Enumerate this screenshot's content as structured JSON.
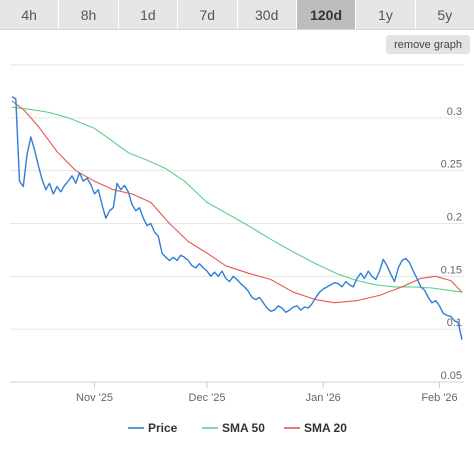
{
  "tabs": [
    {
      "label": "4h",
      "active": false
    },
    {
      "label": "8h",
      "active": false
    },
    {
      "label": "1d",
      "active": false
    },
    {
      "label": "7d",
      "active": false
    },
    {
      "label": "30d",
      "active": false
    },
    {
      "label": "120d",
      "active": true
    },
    {
      "label": "1y",
      "active": false
    },
    {
      "label": "5y",
      "active": false
    }
  ],
  "remove_graph_label": "remove graph",
  "colors": {
    "price": "#2f7ed8",
    "sma50": "#5bd18b",
    "sma20": "#e8574a"
  },
  "chart_data": {
    "type": "line",
    "title": "",
    "xlabel": "",
    "ylabel": "",
    "ylim": [
      0.05,
      0.35
    ],
    "y_ticks": [
      "0.05",
      "0.1",
      "0.15",
      "0.2",
      "0.25",
      "0.3"
    ],
    "x_ticks": [
      {
        "label": "Nov '25",
        "date": "2025-11-01"
      },
      {
        "label": "Dec '25",
        "date": "2025-12-01"
      },
      {
        "label": "Jan '26",
        "date": "2026-01-01"
      },
      {
        "label": "Feb '26",
        "date": "2026-02-01"
      }
    ],
    "x_range": [
      "2025-10-10",
      "2026-02-07"
    ],
    "legend_position": "bottom",
    "series": [
      {
        "name": "Price",
        "color_key": "price",
        "points": [
          [
            "2025-10-10",
            0.32
          ],
          [
            "2025-10-11",
            0.318
          ],
          [
            "2025-10-12",
            0.24
          ],
          [
            "2025-10-13",
            0.235
          ],
          [
            "2025-10-14",
            0.265
          ],
          [
            "2025-10-15",
            0.282
          ],
          [
            "2025-10-16",
            0.27
          ],
          [
            "2025-10-17",
            0.255
          ],
          [
            "2025-10-18",
            0.242
          ],
          [
            "2025-10-19",
            0.232
          ],
          [
            "2025-10-20",
            0.238
          ],
          [
            "2025-10-21",
            0.228
          ],
          [
            "2025-10-22",
            0.235
          ],
          [
            "2025-10-23",
            0.23
          ],
          [
            "2025-10-24",
            0.236
          ],
          [
            "2025-10-25",
            0.24
          ],
          [
            "2025-10-26",
            0.245
          ],
          [
            "2025-10-27",
            0.238
          ],
          [
            "2025-10-28",
            0.248
          ],
          [
            "2025-10-29",
            0.24
          ],
          [
            "2025-10-30",
            0.243
          ],
          [
            "2025-10-31",
            0.237
          ],
          [
            "2025-11-01",
            0.228
          ],
          [
            "2025-11-02",
            0.232
          ],
          [
            "2025-11-03",
            0.218
          ],
          [
            "2025-11-04",
            0.205
          ],
          [
            "2025-11-05",
            0.212
          ],
          [
            "2025-11-06",
            0.215
          ],
          [
            "2025-11-07",
            0.238
          ],
          [
            "2025-11-08",
            0.232
          ],
          [
            "2025-11-09",
            0.236
          ],
          [
            "2025-11-10",
            0.23
          ],
          [
            "2025-11-11",
            0.218
          ],
          [
            "2025-11-12",
            0.212
          ],
          [
            "2025-11-13",
            0.215
          ],
          [
            "2025-11-14",
            0.205
          ],
          [
            "2025-11-15",
            0.198
          ],
          [
            "2025-11-16",
            0.2
          ],
          [
            "2025-11-17",
            0.192
          ],
          [
            "2025-11-18",
            0.188
          ],
          [
            "2025-11-19",
            0.172
          ],
          [
            "2025-11-20",
            0.168
          ],
          [
            "2025-11-21",
            0.165
          ],
          [
            "2025-11-22",
            0.168
          ],
          [
            "2025-11-23",
            0.165
          ],
          [
            "2025-11-24",
            0.17
          ],
          [
            "2025-11-25",
            0.168
          ],
          [
            "2025-11-26",
            0.165
          ],
          [
            "2025-11-27",
            0.16
          ],
          [
            "2025-11-28",
            0.158
          ],
          [
            "2025-11-29",
            0.162
          ],
          [
            "2025-11-30",
            0.158
          ],
          [
            "2025-12-01",
            0.155
          ],
          [
            "2025-12-02",
            0.15
          ],
          [
            "2025-12-03",
            0.154
          ],
          [
            "2025-12-04",
            0.15
          ],
          [
            "2025-12-05",
            0.155
          ],
          [
            "2025-12-06",
            0.148
          ],
          [
            "2025-12-07",
            0.145
          ],
          [
            "2025-12-08",
            0.15
          ],
          [
            "2025-12-09",
            0.147
          ],
          [
            "2025-12-10",
            0.143
          ],
          [
            "2025-12-11",
            0.14
          ],
          [
            "2025-12-12",
            0.136
          ],
          [
            "2025-12-13",
            0.13
          ],
          [
            "2025-12-14",
            0.128
          ],
          [
            "2025-12-15",
            0.13
          ],
          [
            "2025-12-16",
            0.125
          ],
          [
            "2025-12-17",
            0.12
          ],
          [
            "2025-12-18",
            0.117
          ],
          [
            "2025-12-19",
            0.118
          ],
          [
            "2025-12-20",
            0.122
          ],
          [
            "2025-12-21",
            0.12
          ],
          [
            "2025-12-22",
            0.116
          ],
          [
            "2025-12-23",
            0.118
          ],
          [
            "2025-12-24",
            0.121
          ],
          [
            "2025-12-25",
            0.122
          ],
          [
            "2025-12-26",
            0.118
          ],
          [
            "2025-12-27",
            0.121
          ],
          [
            "2025-12-28",
            0.12
          ],
          [
            "2025-12-29",
            0.124
          ],
          [
            "2025-12-30",
            0.13
          ],
          [
            "2025-12-31",
            0.135
          ],
          [
            "2026-01-01",
            0.138
          ],
          [
            "2026-01-02",
            0.14
          ],
          [
            "2026-01-03",
            0.142
          ],
          [
            "2026-01-04",
            0.144
          ],
          [
            "2026-01-05",
            0.143
          ],
          [
            "2026-01-06",
            0.14
          ],
          [
            "2026-01-07",
            0.145
          ],
          [
            "2026-01-08",
            0.142
          ],
          [
            "2026-01-09",
            0.14
          ],
          [
            "2026-01-10",
            0.148
          ],
          [
            "2026-01-11",
            0.153
          ],
          [
            "2026-01-12",
            0.148
          ],
          [
            "2026-01-13",
            0.155
          ],
          [
            "2026-01-14",
            0.15
          ],
          [
            "2026-01-15",
            0.147
          ],
          [
            "2026-01-16",
            0.155
          ],
          [
            "2026-01-17",
            0.166
          ],
          [
            "2026-01-18",
            0.16
          ],
          [
            "2026-01-19",
            0.152
          ],
          [
            "2026-01-20",
            0.145
          ],
          [
            "2026-01-21",
            0.158
          ],
          [
            "2026-01-22",
            0.165
          ],
          [
            "2026-01-23",
            0.167
          ],
          [
            "2026-01-24",
            0.163
          ],
          [
            "2026-01-25",
            0.155
          ],
          [
            "2026-01-26",
            0.148
          ],
          [
            "2026-01-27",
            0.14
          ],
          [
            "2026-01-28",
            0.137
          ],
          [
            "2026-01-29",
            0.13
          ],
          [
            "2026-01-30",
            0.125
          ],
          [
            "2026-01-31",
            0.127
          ],
          [
            "2026-02-01",
            0.122
          ],
          [
            "2026-02-02",
            0.115
          ],
          [
            "2026-02-03",
            0.113
          ],
          [
            "2026-02-04",
            0.112
          ],
          [
            "2026-02-05",
            0.108
          ],
          [
            "2026-02-06",
            0.106
          ],
          [
            "2026-02-07",
            0.09
          ]
        ]
      },
      {
        "name": "SMA 50",
        "color_key": "sma50",
        "points": [
          [
            "2025-10-10",
            0.31
          ],
          [
            "2025-10-15",
            0.308
          ],
          [
            "2025-10-20",
            0.305
          ],
          [
            "2025-10-25",
            0.3
          ],
          [
            "2025-11-01",
            0.29
          ],
          [
            "2025-11-05",
            0.28
          ],
          [
            "2025-11-10",
            0.267
          ],
          [
            "2025-11-15",
            0.26
          ],
          [
            "2025-11-20",
            0.252
          ],
          [
            "2025-11-25",
            0.24
          ],
          [
            "2025-12-01",
            0.22
          ],
          [
            "2025-12-06",
            0.21
          ],
          [
            "2025-12-12",
            0.198
          ],
          [
            "2025-12-18",
            0.185
          ],
          [
            "2025-12-24",
            0.173
          ],
          [
            "2025-12-30",
            0.162
          ],
          [
            "2026-01-05",
            0.152
          ],
          [
            "2026-01-10",
            0.146
          ],
          [
            "2026-01-15",
            0.142
          ],
          [
            "2026-01-20",
            0.14
          ],
          [
            "2026-01-25",
            0.14
          ],
          [
            "2026-01-30",
            0.139
          ],
          [
            "2026-02-03",
            0.137
          ],
          [
            "2026-02-07",
            0.135
          ]
        ]
      },
      {
        "name": "SMA 20",
        "color_key": "sma20",
        "points": [
          [
            "2025-10-10",
            0.316
          ],
          [
            "2025-10-13",
            0.308
          ],
          [
            "2025-10-17",
            0.292
          ],
          [
            "2025-10-22",
            0.268
          ],
          [
            "2025-10-27",
            0.25
          ],
          [
            "2025-11-01",
            0.24
          ],
          [
            "2025-11-06",
            0.232
          ],
          [
            "2025-11-11",
            0.228
          ],
          [
            "2025-11-16",
            0.22
          ],
          [
            "2025-11-21",
            0.2
          ],
          [
            "2025-11-26",
            0.183
          ],
          [
            "2025-12-01",
            0.172
          ],
          [
            "2025-12-06",
            0.16
          ],
          [
            "2025-12-12",
            0.153
          ],
          [
            "2025-12-18",
            0.147
          ],
          [
            "2025-12-24",
            0.135
          ],
          [
            "2025-12-30",
            0.128
          ],
          [
            "2026-01-04",
            0.125
          ],
          [
            "2026-01-10",
            0.127
          ],
          [
            "2026-01-16",
            0.132
          ],
          [
            "2026-01-22",
            0.14
          ],
          [
            "2026-01-27",
            0.148
          ],
          [
            "2026-01-31",
            0.15
          ],
          [
            "2026-02-04",
            0.146
          ],
          [
            "2026-02-07",
            0.135
          ]
        ]
      }
    ]
  }
}
